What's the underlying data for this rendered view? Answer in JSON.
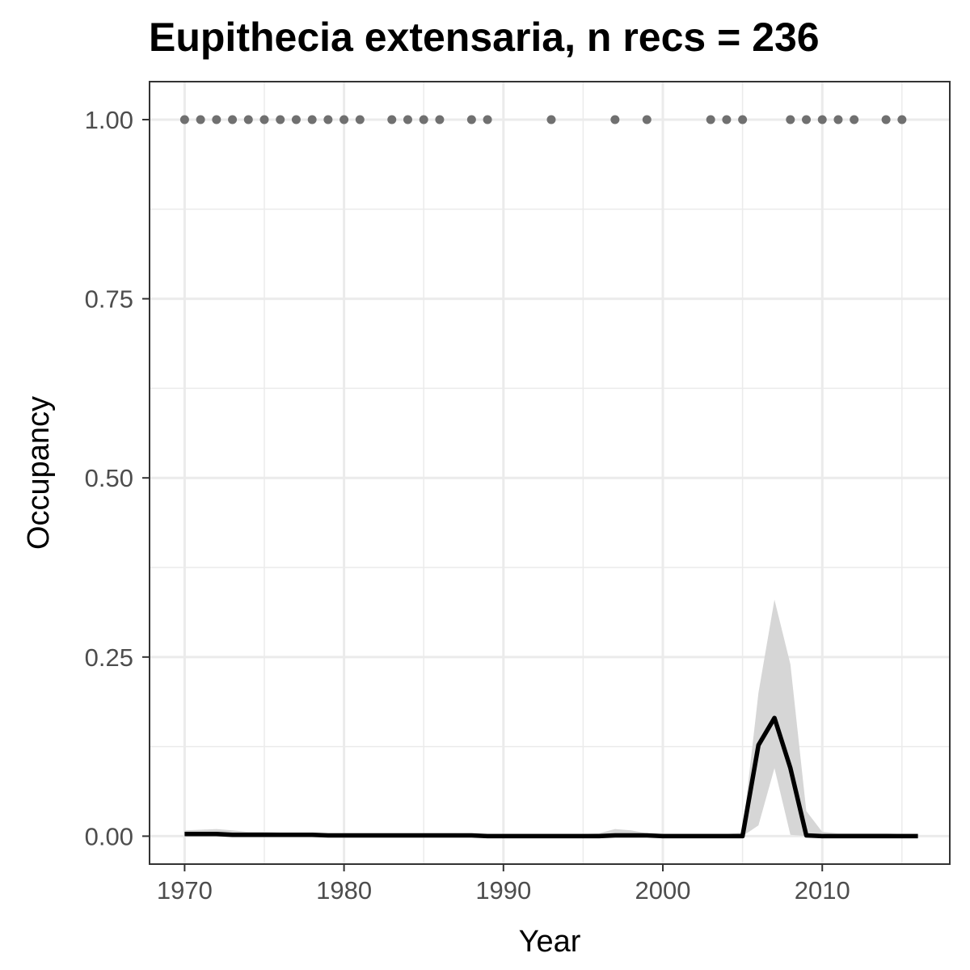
{
  "chart_data": {
    "type": "line",
    "title": "Eupithecia extensaria, n recs = 236",
    "xlabel": "Year",
    "ylabel": "Occupancy",
    "xlim": [
      1967.8,
      2018
    ],
    "ylim": [
      -0.039,
      1.053
    ],
    "x_ticks": [
      1970,
      1980,
      1990,
      2000,
      2010
    ],
    "x_tick_labels": [
      "1970",
      "1980",
      "1990",
      "2000",
      "2010"
    ],
    "y_ticks": [
      0,
      0.25,
      0.5,
      0.75,
      1.0
    ],
    "y_tick_labels": [
      "0.00",
      "0.25",
      "0.50",
      "0.75",
      "1.00"
    ],
    "grid": true,
    "colors": {
      "line": "#000000",
      "ribbon": "#d6d6d6",
      "points": "#707070",
      "grid": "#ebebeb",
      "panel_border": "#333333"
    },
    "series": [
      {
        "type": "line",
        "x": [
          1970,
          1971,
          1972,
          1973,
          1974,
          1975,
          1976,
          1977,
          1978,
          1979,
          1980,
          1981,
          1982,
          1983,
          1984,
          1985,
          1986,
          1987,
          1988,
          1989,
          1990,
          1991,
          1992,
          1993,
          1994,
          1995,
          1996,
          1997,
          1998,
          1999,
          2000,
          2001,
          2002,
          2003,
          2004,
          2005,
          2006,
          2007,
          2008,
          2009,
          2010,
          2011,
          2012,
          2013,
          2014,
          2015,
          2016
        ],
        "y": [
          0.003,
          0.003,
          0.003,
          0.002,
          0.002,
          0.002,
          0.002,
          0.002,
          0.002,
          0.001,
          0.001,
          0.001,
          0.001,
          0.001,
          0.001,
          0.001,
          0.001,
          0.001,
          0.001,
          0.0,
          0.0,
          0.0,
          0.0,
          0.0,
          0.0,
          0.0,
          0.0,
          0.001,
          0.001,
          0.001,
          0.0,
          0.0,
          0.0,
          0.0,
          0.0,
          0.0,
          0.127,
          0.165,
          0.095,
          0.001,
          0.0,
          0.0,
          0.0,
          0.0,
          0.0,
          0.0,
          0.0
        ]
      },
      {
        "type": "area",
        "x": [
          1970,
          1971,
          1972,
          1973,
          1974,
          1975,
          1976,
          1977,
          1978,
          1979,
          1980,
          1981,
          1982,
          1983,
          1984,
          1985,
          1986,
          1987,
          1988,
          1989,
          1990,
          1991,
          1992,
          1993,
          1994,
          1995,
          1996,
          1997,
          1998,
          1999,
          2000,
          2001,
          2002,
          2003,
          2004,
          2005,
          2006,
          2007,
          2008,
          2009,
          2010,
          2011,
          2012,
          2013,
          2014,
          2015,
          2016
        ],
        "lower": [
          0,
          0,
          0,
          0,
          0,
          0,
          0,
          0,
          0,
          0,
          0,
          0,
          0,
          0,
          0,
          0,
          0,
          0,
          0,
          0,
          0,
          0,
          0,
          0,
          0,
          0,
          0,
          0,
          0,
          0,
          0,
          0,
          0,
          0,
          0,
          0,
          0.015,
          0.095,
          0.002,
          0,
          0,
          0,
          0,
          0,
          0,
          0,
          0
        ],
        "upper": [
          0.008,
          0.009,
          0.01,
          0.008,
          0.006,
          0.006,
          0.005,
          0.005,
          0.005,
          0.004,
          0.004,
          0.004,
          0.004,
          0.004,
          0.004,
          0.004,
          0.004,
          0.004,
          0.003,
          0.003,
          0.003,
          0.003,
          0.003,
          0.003,
          0.003,
          0.003,
          0.004,
          0.01,
          0.008,
          0.004,
          0.003,
          0.003,
          0.003,
          0.003,
          0.003,
          0.005,
          0.2,
          0.33,
          0.24,
          0.035,
          0.006,
          0.004,
          0.004,
          0.004,
          0.004,
          0.003,
          0.003
        ]
      },
      {
        "type": "scatter",
        "x": [
          1970,
          1971,
          1972,
          1973,
          1974,
          1975,
          1976,
          1977,
          1978,
          1979,
          1980,
          1981,
          1983,
          1984,
          1985,
          1986,
          1988,
          1989,
          1993,
          1997,
          1999,
          2003,
          2004,
          2005,
          2008,
          2009,
          2010,
          2011,
          2012,
          2014,
          2015
        ],
        "y": [
          1,
          1,
          1,
          1,
          1,
          1,
          1,
          1,
          1,
          1,
          1,
          1,
          1,
          1,
          1,
          1,
          1,
          1,
          1,
          1,
          1,
          1,
          1,
          1,
          1,
          1,
          1,
          1,
          1,
          1,
          1
        ]
      }
    ]
  }
}
